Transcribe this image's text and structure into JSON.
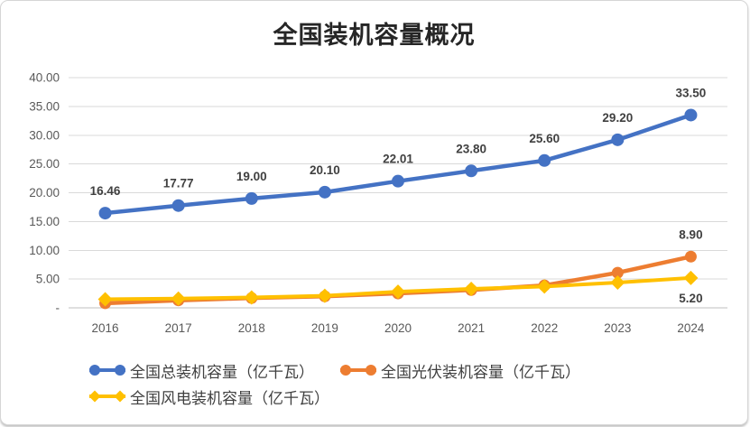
{
  "chart_data": {
    "type": "line",
    "title": "全国装机容量概况",
    "categories": [
      "2016",
      "2017",
      "2018",
      "2019",
      "2020",
      "2021",
      "2022",
      "2023",
      "2024"
    ],
    "series": [
      {
        "name": "全国总装机容量（亿千瓦）",
        "color": "#4472C4",
        "marker": "circle",
        "label_position": "above",
        "values": [
          16.46,
          17.77,
          19.0,
          20.1,
          22.01,
          23.8,
          25.6,
          29.2,
          33.5
        ],
        "labels": [
          "16.46",
          "17.77",
          "19.00",
          "20.10",
          "22.01",
          "23.80",
          "25.60",
          "29.20",
          "33.50"
        ]
      },
      {
        "name": "全国光伏装机容量（亿千瓦）",
        "color": "#ED7D31",
        "marker": "circle",
        "label_position": "above",
        "values": [
          0.8,
          1.3,
          1.7,
          2.0,
          2.5,
          3.1,
          3.9,
          6.1,
          8.9
        ],
        "labels": [
          null,
          null,
          null,
          null,
          null,
          null,
          null,
          null,
          "8.90"
        ]
      },
      {
        "name": "全国风电装机容量（亿千瓦）",
        "color": "#FFC000",
        "marker": "diamond",
        "label_position": "below",
        "values": [
          1.5,
          1.6,
          1.8,
          2.1,
          2.8,
          3.3,
          3.7,
          4.4,
          5.2
        ],
        "labels": [
          null,
          null,
          null,
          null,
          null,
          null,
          null,
          null,
          "5.20"
        ]
      }
    ],
    "ylim": [
      0,
      40
    ],
    "ytick_step": 5,
    "ytick_labels": [
      "-",
      "5.00",
      "10.00",
      "15.00",
      "20.00",
      "25.00",
      "30.00",
      "35.00",
      "40.00"
    ],
    "xlabel": "",
    "ylabel": "",
    "grid": "horizontal",
    "legend_position": "bottom",
    "gridline_color": "#d9d9d9",
    "axis_line_color": "#bfbfbf"
  }
}
